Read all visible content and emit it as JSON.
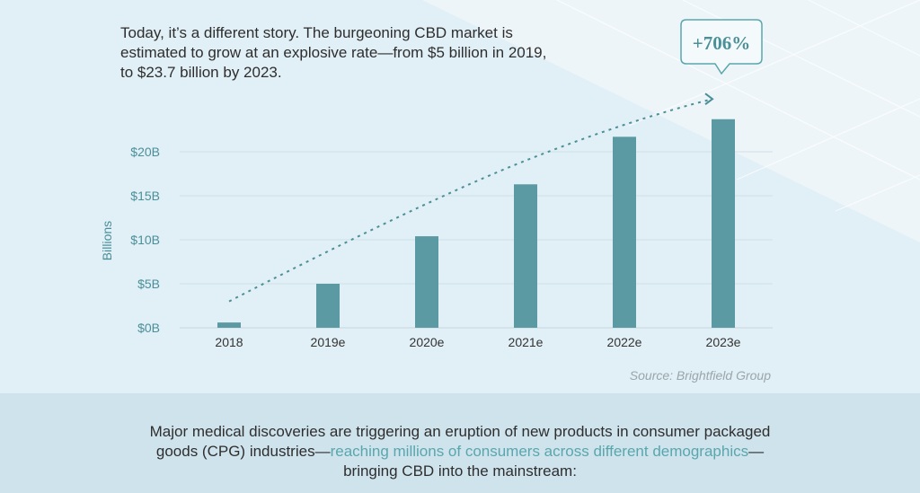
{
  "intro": "Today, it’s a different story. The burgeoning CBD market is estimated to grow at an explosive rate—from $5 billion in 2019, to $23.7 billion by 2023.",
  "callout": "+706%",
  "source": "Source: Brightfield Group",
  "footer": {
    "text_before": "Major medical discoveries are triggering an eruption of new products in consumer packaged goods (CPG) industries—",
    "highlight": "reaching millions of consumers across different demographics",
    "text_after": "—bringing CBD into the mainstream:"
  },
  "colors": {
    "bar": "#5b9aa2",
    "accent": "#4b8f98",
    "highlight": "#5aa6ad"
  },
  "chart_data": {
    "type": "bar",
    "categories": [
      "2018",
      "2019e",
      "2020e",
      "2021e",
      "2022e",
      "2023e"
    ],
    "values": [
      0.6,
      5.0,
      10.4,
      16.3,
      21.7,
      23.7
    ],
    "ylabel": "Billions",
    "xlabel": "",
    "yticks": [
      "$0B",
      "$5B",
      "$10B",
      "$15B",
      "$20B"
    ],
    "ytick_values": [
      0,
      5,
      10,
      15,
      20
    ],
    "ylim": [
      0,
      25
    ],
    "grid": true,
    "trend_line": "dotted arrow rising over the bars"
  }
}
